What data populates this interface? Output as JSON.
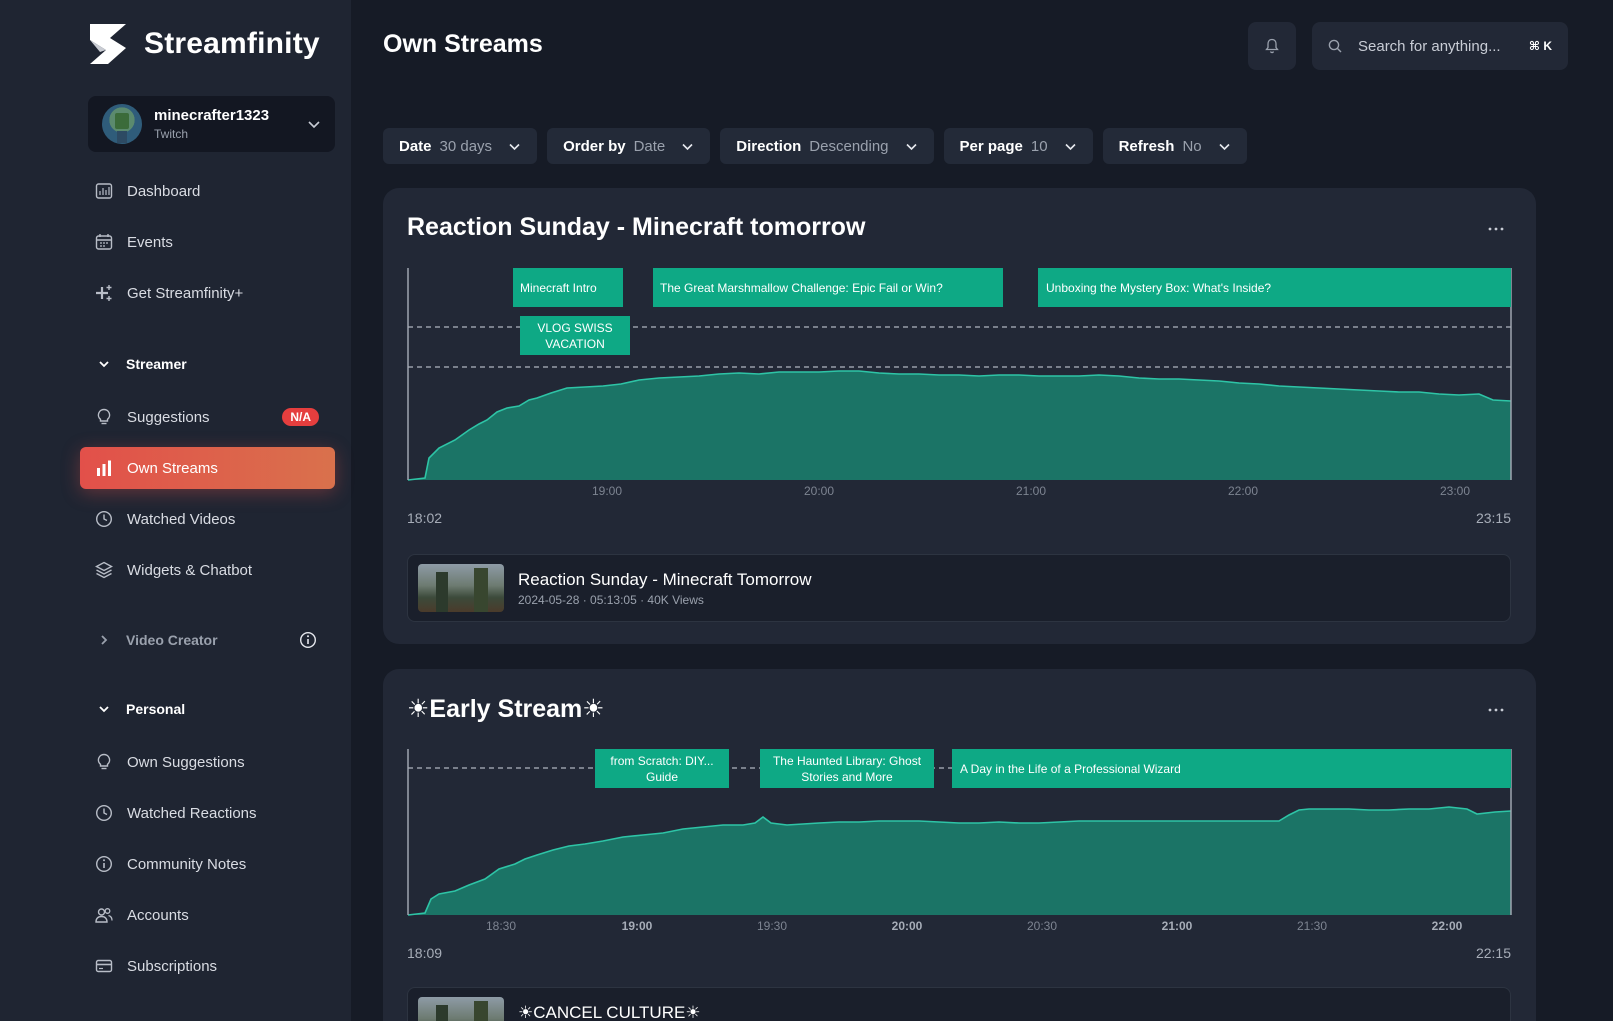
{
  "app": {
    "name": "Streamfinity"
  },
  "account": {
    "username": "minecrafter1323",
    "platform": "Twitch"
  },
  "nav": {
    "dashboard": "Dashboard",
    "events": "Events",
    "plus": "Get Streamfinity+",
    "streamer_section": "Streamer",
    "suggestions": "Suggestions",
    "suggestions_badge": "N/A",
    "own_streams": "Own Streams",
    "watched_videos": "Watched Videos",
    "widgets": "Widgets & Chatbot",
    "video_creator": "Video Creator",
    "personal_section": "Personal",
    "own_suggestions": "Own Suggestions",
    "watched_reactions": "Watched Reactions",
    "community_notes": "Community Notes",
    "accounts": "Accounts",
    "subscriptions": "Subscriptions"
  },
  "header": {
    "title": "Own Streams",
    "search_placeholder": "Search for anything...",
    "search_shortcut": "⌘ K"
  },
  "filters": [
    {
      "key": "Date",
      "value": "30 days"
    },
    {
      "key": "Order by",
      "value": "Date"
    },
    {
      "key": "Direction",
      "value": "Descending"
    },
    {
      "key": "Per page",
      "value": "10"
    },
    {
      "key": "Refresh",
      "value": "No"
    }
  ],
  "colors": {
    "accent": "#e2504a",
    "segment": "#0ea985",
    "area": "#1b7466",
    "line": "#2ec4a6"
  },
  "streams": [
    {
      "title": "Reaction Sunday - Minecraft tomorrow",
      "start": "18:02",
      "end": "23:15",
      "ticks": [
        "19:00",
        "20:00",
        "21:00",
        "22:00",
        "23:00"
      ],
      "segments": [
        {
          "label": "Minecraft Intro",
          "row": 0
        },
        {
          "label": "The Great Marshmallow Challenge: Epic Fail or Win?",
          "row": 0
        },
        {
          "label": "Unboxing the Mystery Box: What's Inside?",
          "row": 0
        },
        {
          "label": "VLOG SWISS VACATION",
          "row": 1
        }
      ],
      "vod": {
        "title": "Reaction Sunday - Minecraft Tomorrow",
        "meta": "2024-05-28 · 05:13:05 · 40K Views"
      }
    },
    {
      "title": "☀Early Stream☀",
      "start": "18:09",
      "end": "22:15",
      "ticks": [
        "18:30",
        "19:00",
        "19:30",
        "20:00",
        "20:30",
        "21:00",
        "21:30",
        "22:00"
      ],
      "bold_ticks": [
        "19:00",
        "20:00",
        "21:00",
        "22:00"
      ],
      "segments": [
        {
          "label": "from Scratch: DIY... Guide",
          "row": 0
        },
        {
          "label": "The Haunted Library: Ghost Stories and More",
          "row": 0
        },
        {
          "label": "A Day in the Life of a Professional Wizard",
          "row": 0
        }
      ],
      "vod": {
        "title": "☀CANCEL CULTURE☀",
        "meta": ""
      }
    }
  ]
}
